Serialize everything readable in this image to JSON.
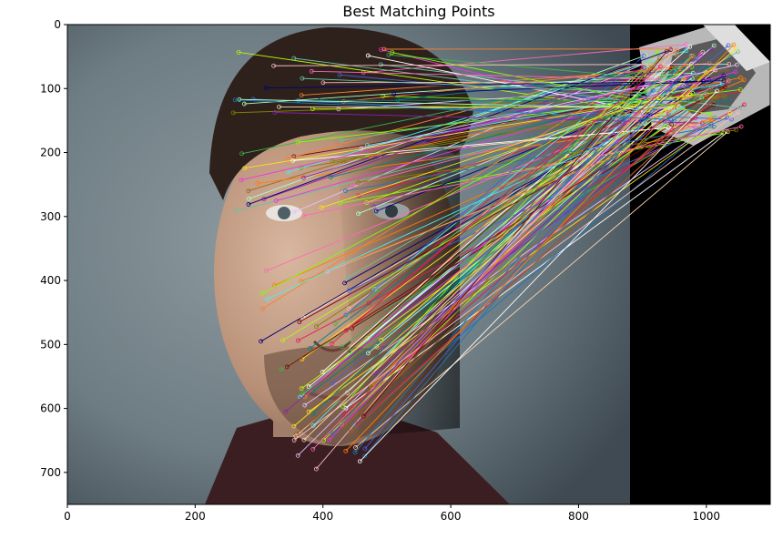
{
  "chart_data": {
    "type": "image-plot",
    "title": "Best Matching Points",
    "xlim": [
      0,
      1100
    ],
    "ylim": [
      750,
      0
    ],
    "x_ticks": [
      0,
      200,
      400,
      600,
      800,
      1000
    ],
    "y_ticks": [
      0,
      100,
      200,
      300,
      400,
      500,
      600,
      700
    ],
    "x_tick_labels": [
      "0",
      "200",
      "400",
      "600",
      "800",
      "1000"
    ],
    "y_tick_labels": [
      "0",
      "100",
      "200",
      "300",
      "400",
      "500",
      "600",
      "700"
    ],
    "image_left_width": 880,
    "match_count": 150,
    "match_colors": [
      "#e6194b",
      "#3cb44b",
      "#ffe119",
      "#4363d8",
      "#f58231",
      "#911eb4",
      "#46f0f0",
      "#f032e6",
      "#bcf60c",
      "#fabebe",
      "#008080",
      "#e6beff",
      "#9a6324",
      "#800000",
      "#aaffc3",
      "#808000",
      "#ffd8b1",
      "#000075",
      "#ffffff",
      "#ff7f00",
      "#66c2a5",
      "#1f78b4",
      "#ff69b4",
      "#7fff00"
    ]
  }
}
